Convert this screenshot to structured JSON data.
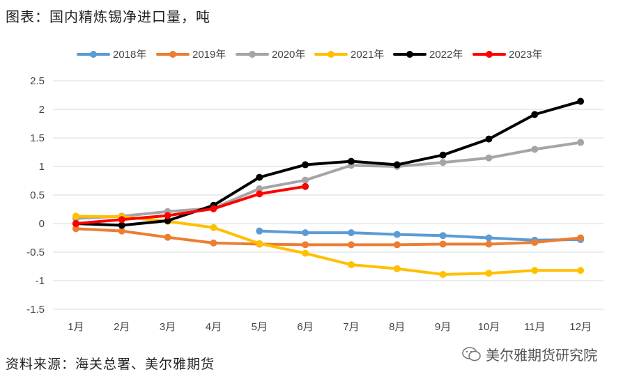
{
  "title": "图表：国内精炼锡净进口量，吨",
  "source": "资料来源：海关总署、美尔雅期货",
  "watermark": "美尔雅期货研究院",
  "chart_data": {
    "type": "line",
    "categories": [
      "1月",
      "2月",
      "3月",
      "4月",
      "5月",
      "6月",
      "7月",
      "8月",
      "9月",
      "10月",
      "11月",
      "12月"
    ],
    "ylim": [
      -1.5,
      2.5
    ],
    "yticks": [
      -1.5,
      -1,
      -0.5,
      0,
      0.5,
      1,
      1.5,
      2,
      2.5
    ],
    "ytick_labels": [
      "-1.5",
      "-1",
      "-0.5",
      "0",
      "0.5",
      "1",
      "1.5",
      "2",
      "2.5"
    ],
    "grid": true,
    "legend": "top",
    "series": [
      {
        "name": "2018年",
        "color": "#5b9bd5",
        "values": [
          null,
          null,
          null,
          null,
          -0.13,
          -0.16,
          -0.16,
          -0.19,
          -0.21,
          -0.25,
          -0.29,
          -0.28
        ]
      },
      {
        "name": "2019年",
        "color": "#ed7d31",
        "values": [
          -0.09,
          -0.13,
          -0.24,
          -0.34,
          -0.36,
          -0.37,
          -0.37,
          -0.37,
          -0.36,
          -0.36,
          -0.33,
          -0.25
        ]
      },
      {
        "name": "2020年",
        "color": "#a5a5a5",
        "values": [
          0.09,
          0.13,
          0.21,
          0.27,
          0.61,
          0.76,
          1.02,
          1.0,
          1.07,
          1.15,
          1.3,
          1.42
        ]
      },
      {
        "name": "2021年",
        "color": "#ffc000",
        "values": [
          0.13,
          0.12,
          0.04,
          -0.07,
          -0.35,
          -0.52,
          -0.72,
          -0.79,
          -0.89,
          -0.87,
          -0.82,
          -0.82
        ]
      },
      {
        "name": "2022年",
        "color": "#000000",
        "values": [
          0.0,
          -0.03,
          0.05,
          0.32,
          0.81,
          1.03,
          1.09,
          1.03,
          1.2,
          1.48,
          1.91,
          2.14
        ]
      },
      {
        "name": "2023年",
        "color": "#ff0000",
        "values": [
          0.0,
          0.07,
          0.14,
          0.26,
          0.52,
          0.65,
          null,
          null,
          null,
          null,
          null,
          null
        ]
      }
    ]
  }
}
